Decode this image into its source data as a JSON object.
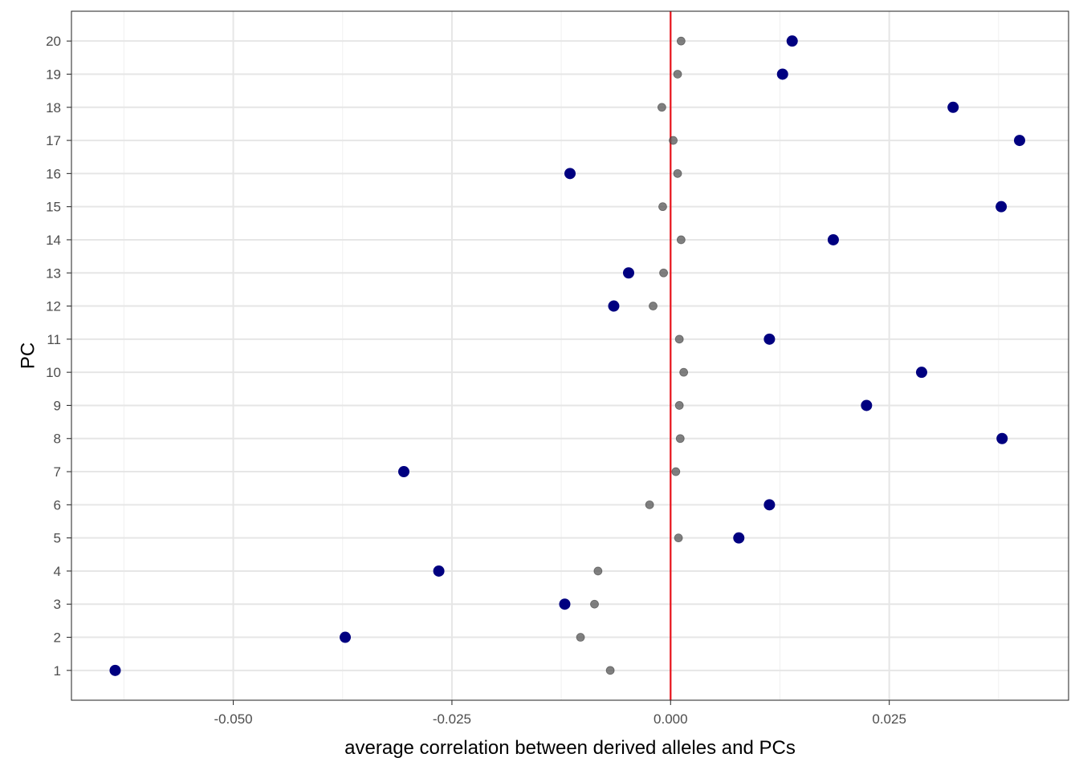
{
  "chart_data": {
    "type": "scatter",
    "title": "",
    "xlabel": "average correlation between derived alleles and PCs",
    "ylabel": "PC",
    "xlim": [
      -0.0685,
      0.0455
    ],
    "ylim": [
      0.1,
      20.9
    ],
    "x_ticks": [
      -0.05,
      -0.025,
      0.0,
      0.025
    ],
    "x_tick_labels": [
      "-0.050",
      "-0.025",
      "0.000",
      "0.025"
    ],
    "y_ticks": [
      1,
      2,
      3,
      4,
      5,
      6,
      7,
      8,
      9,
      10,
      11,
      12,
      13,
      14,
      15,
      16,
      17,
      18,
      19,
      20
    ],
    "y_tick_labels": [
      "1",
      "2",
      "3",
      "4",
      "5",
      "6",
      "7",
      "8",
      "9",
      "10",
      "11",
      "12",
      "13",
      "14",
      "15",
      "16",
      "17",
      "18",
      "19",
      "20"
    ],
    "grid": true,
    "reference_line": {
      "x": 0.0,
      "color": "#e8121b"
    },
    "series": [
      {
        "color": "#000080",
        "style": "large-solid",
        "points": [
          {
            "x": -0.0635,
            "y": 1
          },
          {
            "x": -0.0372,
            "y": 2
          },
          {
            "x": -0.0121,
            "y": 3
          },
          {
            "x": -0.0265,
            "y": 4
          },
          {
            "x": 0.0078,
            "y": 5
          },
          {
            "x": 0.0113,
            "y": 6
          },
          {
            "x": -0.0305,
            "y": 7
          },
          {
            "x": 0.0379,
            "y": 8
          },
          {
            "x": 0.0224,
            "y": 9
          },
          {
            "x": 0.0287,
            "y": 10
          },
          {
            "x": 0.0113,
            "y": 11
          },
          {
            "x": -0.0065,
            "y": 12
          },
          {
            "x": -0.0048,
            "y": 13
          },
          {
            "x": 0.0186,
            "y": 14
          },
          {
            "x": 0.0378,
            "y": 15
          },
          {
            "x": -0.0115,
            "y": 16
          },
          {
            "x": 0.0399,
            "y": 17
          },
          {
            "x": 0.0323,
            "y": 18
          },
          {
            "x": 0.0128,
            "y": 19
          },
          {
            "x": 0.0139,
            "y": 20
          }
        ]
      },
      {
        "color": "#555555",
        "style": "small-translucent",
        "points": [
          {
            "x": -0.0069,
            "y": 1
          },
          {
            "x": -0.0103,
            "y": 2
          },
          {
            "x": -0.0087,
            "y": 3
          },
          {
            "x": -0.0083,
            "y": 4
          },
          {
            "x": 0.0009,
            "y": 5
          },
          {
            "x": -0.0024,
            "y": 6
          },
          {
            "x": 0.0006,
            "y": 7
          },
          {
            "x": 0.0011,
            "y": 8
          },
          {
            "x": 0.001,
            "y": 9
          },
          {
            "x": 0.0015,
            "y": 10
          },
          {
            "x": 0.001,
            "y": 11
          },
          {
            "x": -0.002,
            "y": 12
          },
          {
            "x": -0.0008,
            "y": 13
          },
          {
            "x": 0.0012,
            "y": 14
          },
          {
            "x": -0.0009,
            "y": 15
          },
          {
            "x": 0.0008,
            "y": 16
          },
          {
            "x": 0.0003,
            "y": 17
          },
          {
            "x": -0.001,
            "y": 18
          },
          {
            "x": 0.0008,
            "y": 19
          },
          {
            "x": 0.0012,
            "y": 20
          }
        ]
      }
    ]
  }
}
